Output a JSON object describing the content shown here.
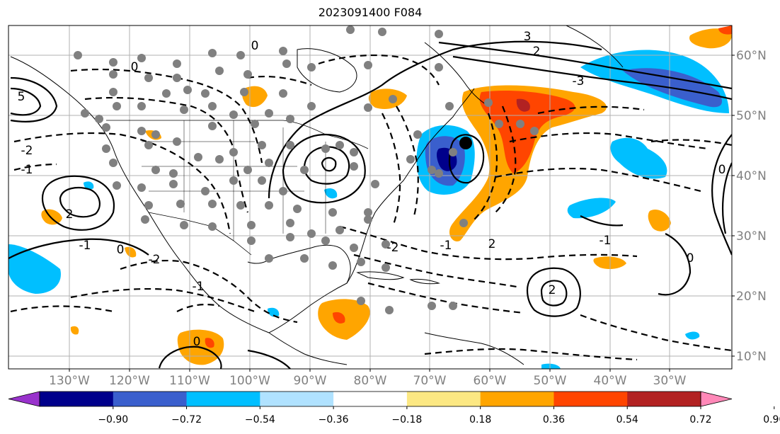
{
  "title": "2023091400 F084",
  "lat_labels": [
    "60°N",
    "50°N",
    "40°N",
    "30°N",
    "20°N",
    "10°N"
  ],
  "lon_labels": [
    "130°W",
    "120°W",
    "110°W",
    "100°W",
    "90°W",
    "80°W",
    "70°W",
    "60°W",
    "50°W",
    "40°W",
    "30°W"
  ],
  "colorbar": {
    "tick_labels": [
      "−0.90",
      "−0.72",
      "−0.54",
      "−0.36",
      "−0.18",
      "0.18",
      "0.36",
      "0.54",
      "0.72",
      "0.90"
    ],
    "colors": [
      "#9932cc",
      "#00008b",
      "#3a5fcd",
      "#00bfff",
      "#b0e2ff",
      "#ffffff",
      "#fce883",
      "#ffa500",
      "#ff4500",
      "#b22222",
      "#ff88b8"
    ]
  },
  "contour_labels": [
    "0",
    "3",
    "2",
    "-3",
    "5",
    "-2",
    "-1",
    "2",
    "0",
    "-1",
    "0",
    "-2",
    "-1",
    "0",
    "-1",
    "2",
    "-1",
    "0",
    "2",
    "-2",
    "0"
  ],
  "colors": {
    "contour": "#000000",
    "grid": "#b0b0b0",
    "station": "#808080",
    "storm": "#000000"
  }
}
